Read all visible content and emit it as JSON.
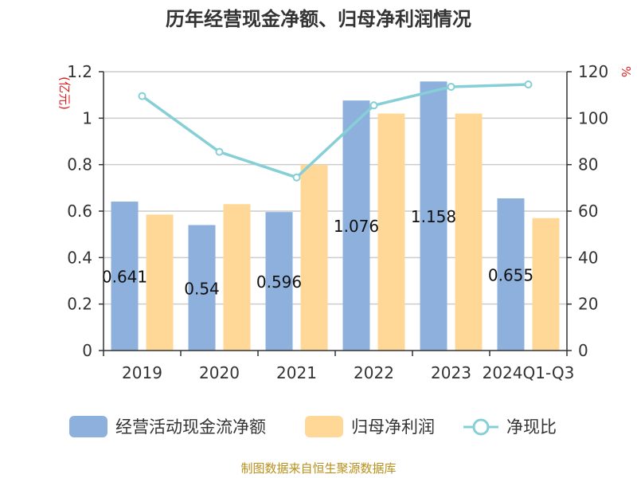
{
  "chart_data": {
    "type": "bar",
    "title": "历年经营现金净额、归母净利润情况",
    "categories": [
      "2019",
      "2020",
      "2021",
      "2022",
      "2023",
      "2024Q1-Q3"
    ],
    "left_axis_unit": "(亿元)",
    "right_axis_unit": "%",
    "y_left_range": [
      0,
      1.2
    ],
    "y_left_ticks": [
      "0",
      "0.2",
      "0.4",
      "0.6",
      "0.8",
      "1",
      "1.2"
    ],
    "y_right_range": [
      0,
      120
    ],
    "y_right_ticks": [
      "0",
      "20",
      "40",
      "60",
      "80",
      "100",
      "120"
    ],
    "grid": true,
    "legend_position": "bottom",
    "series": [
      {
        "name": "经营活动现金流净额",
        "type": "bar",
        "axis": "left",
        "values": [
          0.641,
          0.54,
          0.596,
          1.076,
          1.158,
          0.655
        ],
        "data_labels": [
          "0.641",
          "0.54",
          "0.596",
          "1.076",
          "1.158",
          "0.655"
        ]
      },
      {
        "name": "归母净利润",
        "type": "bar",
        "axis": "left",
        "values": [
          0.585,
          0.63,
          0.8,
          1.02,
          1.02,
          0.57
        ]
      },
      {
        "name": "净现比",
        "type": "line",
        "axis": "right",
        "values": [
          109.5,
          85.5,
          74.5,
          105.5,
          113.5,
          114.5
        ]
      }
    ],
    "colors": {
      "series1": "#8eb0dc",
      "series2": "#ffd898",
      "series3": "#86cfd6",
      "grid": "#cccccc",
      "axis": "#333333",
      "unit": "#e02020",
      "source": "#b8901c"
    }
  },
  "source": "制图数据来自恒生聚源数据库"
}
